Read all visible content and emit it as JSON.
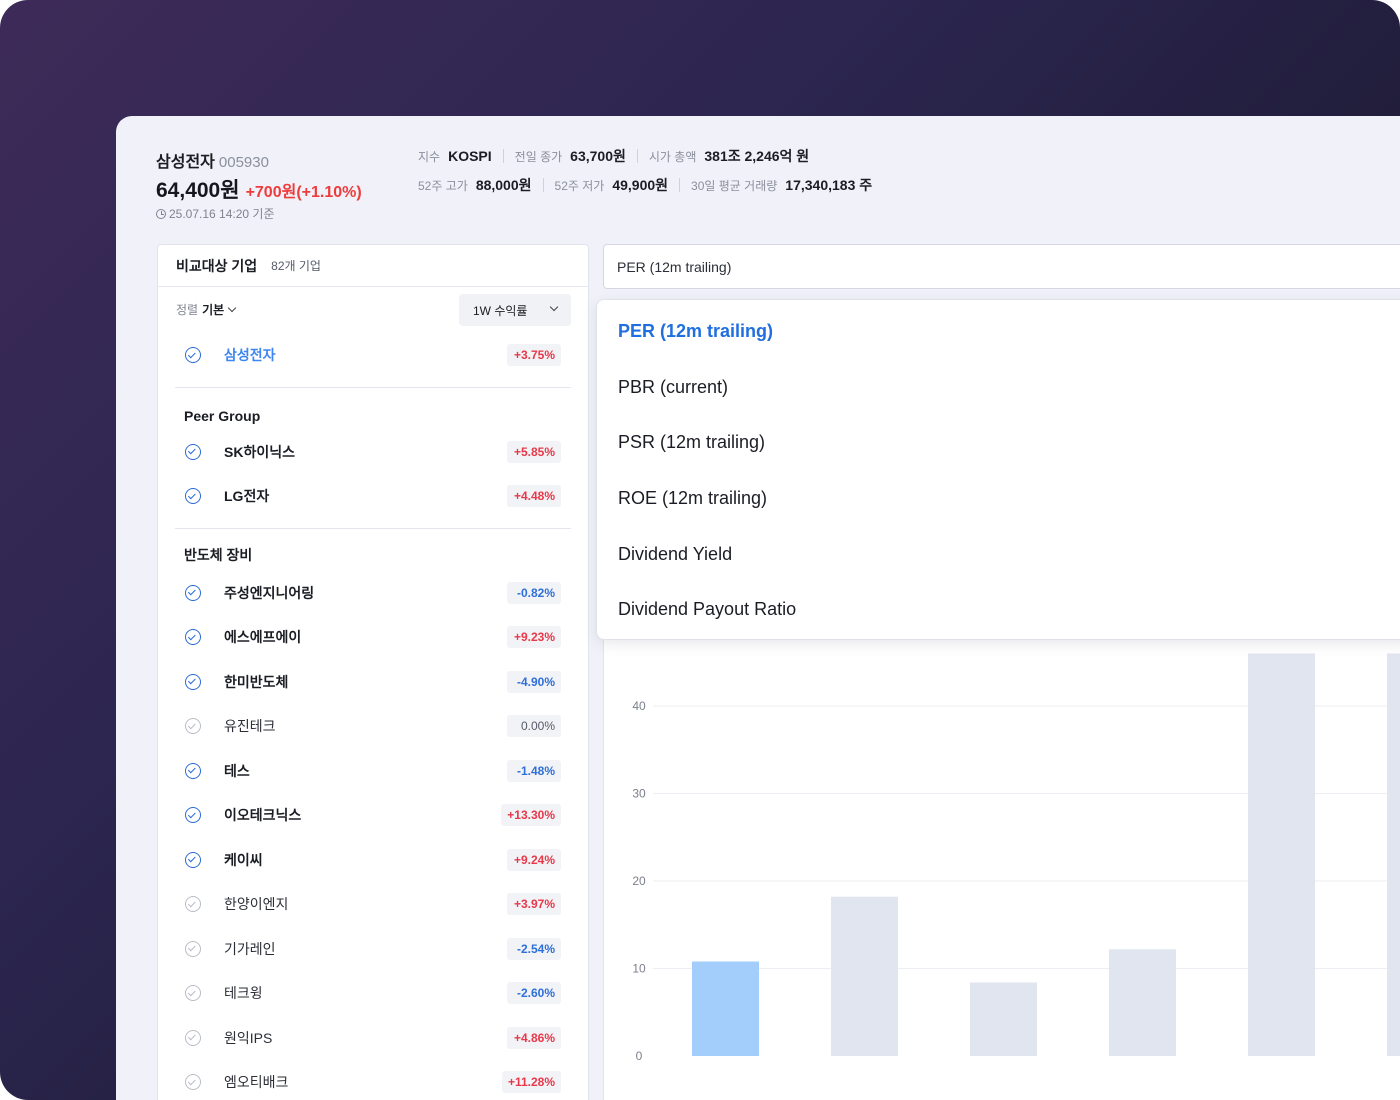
{
  "stock": {
    "name": "삼성전자",
    "code": "005930",
    "price": "64,400원",
    "change": "+700원(+1.10%)",
    "as_of": "25.07.16 14:20 기준"
  },
  "stats": {
    "row1": [
      {
        "label": "지수",
        "value": "KOSPI"
      },
      {
        "label": "전일 종가",
        "value": "63,700원"
      },
      {
        "label": "시가 총액",
        "value": "381조 2,246억 원"
      }
    ],
    "row2": [
      {
        "label": "52주 고가",
        "value": "88,000원"
      },
      {
        "label": "52주 저가",
        "value": "49,900원"
      },
      {
        "label": "30일 평균 거래량",
        "value": "17,340,183 주"
      }
    ]
  },
  "compare": {
    "title": "비교대상 기업",
    "count": "82개 기업",
    "sort_label": "정렬",
    "sort_value": "기본",
    "period": "1W 수익률",
    "self": {
      "name": "삼성전자",
      "change": "+3.75%",
      "dir": "up",
      "checked": true
    },
    "groups": [
      {
        "title": "Peer Group",
        "items": [
          {
            "name": "SK하이닉스",
            "change": "+5.85%",
            "dir": "up",
            "checked": true
          },
          {
            "name": "LG전자",
            "change": "+4.48%",
            "dir": "up",
            "checked": true
          }
        ]
      },
      {
        "title": "반도체 장비",
        "items": [
          {
            "name": "주성엔지니어링",
            "change": "-0.82%",
            "dir": "down",
            "checked": true
          },
          {
            "name": "에스에프에이",
            "change": "+9.23%",
            "dir": "up",
            "checked": true
          },
          {
            "name": "한미반도체",
            "change": "-4.90%",
            "dir": "down",
            "checked": true
          },
          {
            "name": "유진테크",
            "change": "0.00%",
            "dir": "flat",
            "checked": false
          },
          {
            "name": "테스",
            "change": "-1.48%",
            "dir": "down",
            "checked": true
          },
          {
            "name": "이오테크닉스",
            "change": "+13.30%",
            "dir": "up",
            "checked": true
          },
          {
            "name": "케이씨",
            "change": "+9.24%",
            "dir": "up",
            "checked": true
          },
          {
            "name": "한양이엔지",
            "change": "+3.97%",
            "dir": "up",
            "checked": false
          },
          {
            "name": "기가레인",
            "change": "-2.54%",
            "dir": "down",
            "checked": false
          },
          {
            "name": "테크윙",
            "change": "-2.60%",
            "dir": "down",
            "checked": false
          },
          {
            "name": "원익IPS",
            "change": "+4.86%",
            "dir": "up",
            "checked": false
          },
          {
            "name": "엠오티배크",
            "change": "+11.28%",
            "dir": "up",
            "checked": false
          }
        ]
      }
    ]
  },
  "metric": {
    "selected": "PER (12m trailing)",
    "options": [
      "PER (12m trailing)",
      "PBR (current)",
      "PSR (12m trailing)",
      "ROE (12m trailing)",
      "Dividend Yield",
      "Dividend Payout Ratio"
    ]
  },
  "chart_data": {
    "type": "bar",
    "ylim": [
      0,
      50
    ],
    "yticks": [
      0,
      10,
      20,
      30,
      40
    ],
    "values": [
      10.8,
      18.2,
      8.4,
      12.2,
      46,
      46
    ],
    "highlight_index": 0,
    "colors": {
      "highlight": "#a3cdfb",
      "normal": "#e1e5ef",
      "grid": "#eceef3",
      "tick": "#7a7f8c"
    }
  },
  "colors": {
    "up": "#e8384a",
    "down": "#2e6fd8",
    "accent": "#1f6fe0"
  }
}
